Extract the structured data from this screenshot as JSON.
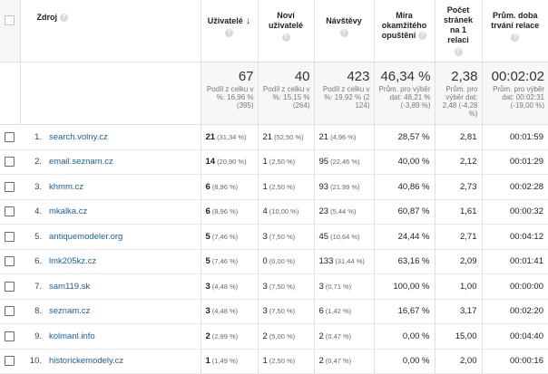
{
  "header": {
    "source": "Zdroj",
    "users": "Uživatelé",
    "new_users": "Noví uživatelé",
    "visits": "Návštěvy",
    "bounce": "Míra okamžitého opuštění",
    "pages": "Počet stránek na 1 relaci",
    "duration": "Prům. doba trvání relace"
  },
  "totals": {
    "users": {
      "value": "67",
      "sub": "Podíl z celku v %: 16,96 % (395)"
    },
    "new_users": {
      "value": "40",
      "sub": "Podíl z celku v %: 15,15 % (264)"
    },
    "visits": {
      "value": "423",
      "sub": "Podíl z celku v %: 19,92 % (2 124)"
    },
    "bounce": {
      "value": "46,34 %",
      "sub": "Prům. pro výběr dat: 48,21 % (-3,89 %)"
    },
    "pages": {
      "value": "2,38",
      "sub": "Prům. pro výběr dat: 2,48 (-4,28 %)"
    },
    "duration": {
      "value": "00:02:02",
      "sub": "Prům. pro výběr dat: 00:02:31 (-19,00 %)"
    }
  },
  "rows": [
    {
      "idx": "1.",
      "source": "search.volny.cz",
      "users": "21",
      "users_pct": "(31,34 %)",
      "new": "21",
      "new_pct": "(52,50 %)",
      "visits": "21",
      "visits_pct": "(4,96 %)",
      "bounce": "28,57 %",
      "pages": "2,81",
      "duration": "00:01:59"
    },
    {
      "idx": "2.",
      "source": "email.seznam.cz",
      "users": "14",
      "users_pct": "(20,90 %)",
      "new": "1",
      "new_pct": "(2,50 %)",
      "visits": "95",
      "visits_pct": "(22,46 %)",
      "bounce": "40,00 %",
      "pages": "2,12",
      "duration": "00:01:29"
    },
    {
      "idx": "3.",
      "source": "khmm.cz",
      "users": "6",
      "users_pct": "(8,96 %)",
      "new": "1",
      "new_pct": "(2,50 %)",
      "visits": "93",
      "visits_pct": "(21,99 %)",
      "bounce": "40,86 %",
      "pages": "2,73",
      "duration": "00:02:28"
    },
    {
      "idx": "4.",
      "source": "mkalka.cz",
      "users": "6",
      "users_pct": "(8,96 %)",
      "new": "4",
      "new_pct": "(10,00 %)",
      "visits": "23",
      "visits_pct": "(5,44 %)",
      "bounce": "60,87 %",
      "pages": "1,61",
      "duration": "00:00:32"
    },
    {
      "idx": "5.",
      "source": "antiquemodeler.org",
      "users": "5",
      "users_pct": "(7,46 %)",
      "new": "3",
      "new_pct": "(7,50 %)",
      "visits": "45",
      "visits_pct": "(10,64 %)",
      "bounce": "24,44 %",
      "pages": "2,71",
      "duration": "00:04:12"
    },
    {
      "idx": "6.",
      "source": "lmk205kz.cz",
      "users": "5",
      "users_pct": "(7,46 %)",
      "new": "0",
      "new_pct": "(0,00 %)",
      "visits": "133",
      "visits_pct": "(31,44 %)",
      "bounce": "63,16 %",
      "pages": "2,09",
      "duration": "00:01:41"
    },
    {
      "idx": "7.",
      "source": "sam119.sk",
      "users": "3",
      "users_pct": "(4,48 %)",
      "new": "3",
      "new_pct": "(7,50 %)",
      "visits": "3",
      "visits_pct": "(0,71 %)",
      "bounce": "100,00 %",
      "pages": "1,00",
      "duration": "00:00:00"
    },
    {
      "idx": "8.",
      "source": "seznam.cz",
      "users": "3",
      "users_pct": "(4,48 %)",
      "new": "3",
      "new_pct": "(7,50 %)",
      "visits": "6",
      "visits_pct": "(1,42 %)",
      "bounce": "16,67 %",
      "pages": "3,17",
      "duration": "00:02:20"
    },
    {
      "idx": "9.",
      "source": "kolmanl.info",
      "users": "2",
      "users_pct": "(2,99 %)",
      "new": "2",
      "new_pct": "(5,00 %)",
      "visits": "2",
      "visits_pct": "(0,47 %)",
      "bounce": "0,00 %",
      "pages": "15,00",
      "duration": "00:04:40"
    },
    {
      "idx": "10.",
      "source": "historickemodely.cz",
      "users": "1",
      "users_pct": "(1,49 %)",
      "new": "1",
      "new_pct": "(2,50 %)",
      "visits": "2",
      "visits_pct": "(0,47 %)",
      "bounce": "0,00 %",
      "pages": "2,00",
      "duration": "00:00:16"
    }
  ]
}
